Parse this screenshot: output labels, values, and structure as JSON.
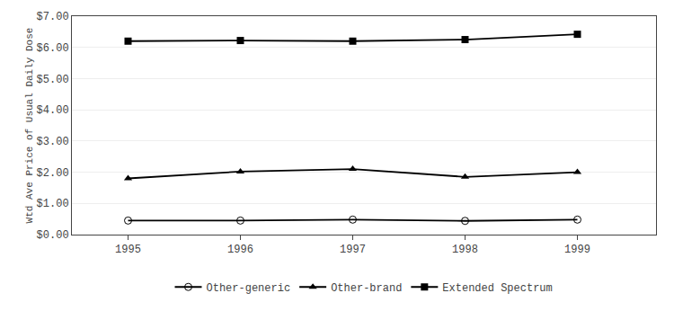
{
  "chart_data": {
    "type": "line",
    "ylabel": "Wtd Ave Price of Usual Daily Dose",
    "x": [
      1995,
      1996,
      1997,
      1998,
      1999
    ],
    "series": [
      {
        "name": "Other-generic",
        "color": "#000000",
        "marker": "circle-open",
        "values": [
          0.45,
          0.45,
          0.48,
          0.44,
          0.48
        ]
      },
      {
        "name": "Other-brand",
        "color": "#000000",
        "marker": "triangle-up",
        "values": [
          1.8,
          2.02,
          2.1,
          1.85,
          2.0
        ]
      },
      {
        "name": "Extended Spectrum",
        "color": "#000000",
        "marker": "square",
        "values": [
          6.2,
          6.22,
          6.2,
          6.25,
          6.42
        ]
      }
    ],
    "xlim": [
      1994.5,
      1999.7
    ],
    "xticks": [
      1995,
      1996,
      1997,
      1998,
      1999
    ],
    "ylim": [
      0.0,
      7.0
    ],
    "yticks": [
      {
        "value": 0.0,
        "label": "$0.00"
      },
      {
        "value": 1.0,
        "label": "$1.00"
      },
      {
        "value": 2.0,
        "label": "$2.00"
      },
      {
        "value": 3.0,
        "label": "$3.00"
      },
      {
        "value": 4.0,
        "label": "$4.00"
      },
      {
        "value": 5.0,
        "label": "$5.00"
      },
      {
        "value": 6.0,
        "label": "$6.00"
      },
      {
        "value": 7.0,
        "label": "$7.00"
      }
    ],
    "grid": "y",
    "legend": "bottom"
  }
}
